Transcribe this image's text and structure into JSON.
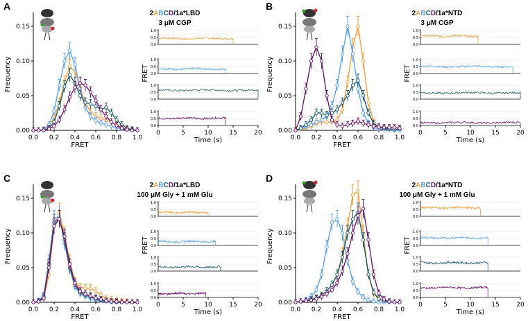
{
  "colors": {
    "A": "#f5a23c",
    "B": "#5ba3f0",
    "C": "#1e5e6e",
    "D": "#6e1a6e"
  },
  "chart_data": [
    {
      "type": "line",
      "panel": "A",
      "title_prefix": "2",
      "title_subunits": [
        "A",
        "B",
        "C",
        "D"
      ],
      "title_suffix": "/1a*LBD",
      "condition": "3 μM CGP",
      "xlabel": "FRET",
      "ylabel": "Frequency",
      "xlim": [
        0,
        1
      ],
      "ylim": [
        0,
        0.17
      ],
      "xticks": [
        "0.0",
        "0.2",
        "0.4",
        "0.6",
        "0.8",
        "1.0"
      ],
      "yticks": [
        "0.00",
        "0.05",
        "0.10",
        "0.15"
      ],
      "x": [
        0,
        0.05,
        0.1,
        0.15,
        0.2,
        0.25,
        0.3,
        0.35,
        0.4,
        0.45,
        0.5,
        0.55,
        0.6,
        0.65,
        0.7,
        0.75,
        0.8,
        0.85,
        0.9,
        0.95,
        1.0
      ],
      "series": [
        {
          "name": "A",
          "values": [
            0,
            0,
            0.001,
            0.006,
            0.018,
            0.04,
            0.07,
            0.092,
            0.085,
            0.062,
            0.04,
            0.026,
            0.02,
            0.017,
            0.015,
            0.012,
            0.008,
            0.004,
            0.002,
            0.001,
            0
          ]
        },
        {
          "name": "B",
          "values": [
            0,
            0,
            0.001,
            0.008,
            0.028,
            0.065,
            0.1,
            0.115,
            0.095,
            0.06,
            0.033,
            0.02,
            0.014,
            0.01,
            0.008,
            0.006,
            0.004,
            0.002,
            0.001,
            0,
            0
          ]
        },
        {
          "name": "C",
          "values": [
            0,
            0,
            0,
            0.003,
            0.012,
            0.035,
            0.063,
            0.08,
            0.068,
            0.05,
            0.04,
            0.038,
            0.035,
            0.03,
            0.033,
            0.025,
            0.015,
            0.008,
            0.003,
            0.001,
            0
          ]
        },
        {
          "name": "D",
          "values": [
            0,
            0,
            0,
            0.002,
            0.006,
            0.015,
            0.03,
            0.048,
            0.062,
            0.068,
            0.065,
            0.055,
            0.043,
            0.03,
            0.02,
            0.012,
            0.007,
            0.003,
            0.001,
            0,
            0
          ]
        }
      ],
      "traces_time_label": "Time (s)",
      "traces_ylabel": "FRET",
      "trace_xticks": [
        "0",
        "5",
        "10",
        "15",
        "20"
      ],
      "trace_yticks": [
        "0.0",
        "0.5",
        "1.0"
      ],
      "traces": [
        {
          "name": "A",
          "end_time": 15,
          "mean": 0.42
        },
        {
          "name": "B",
          "end_time": 13.5,
          "mean": 0.33
        },
        {
          "name": "C",
          "end_time": 20,
          "mean": 0.65
        },
        {
          "name": "D",
          "end_time": 13.5,
          "mean": 0.52
        }
      ]
    },
    {
      "type": "line",
      "panel": "B",
      "title_prefix": "2",
      "title_subunits": [
        "A",
        "B",
        "C",
        "D"
      ],
      "title_suffix": "/1a*NTD",
      "condition": "3 μM CGP",
      "xlabel": "FRET",
      "ylabel": "Frequency",
      "xlim": [
        0,
        1
      ],
      "ylim": [
        0,
        0.17
      ],
      "xticks": [
        "0.0",
        "0.2",
        "0.4",
        "0.6",
        "0.8",
        "1.0"
      ],
      "yticks": [
        "0.00",
        "0.05",
        "0.10",
        "0.15"
      ],
      "x": [
        0,
        0.05,
        0.1,
        0.15,
        0.2,
        0.25,
        0.3,
        0.35,
        0.4,
        0.45,
        0.5,
        0.55,
        0.6,
        0.65,
        0.7,
        0.75,
        0.8,
        0.85,
        0.9,
        0.95,
        1.0
      ],
      "series": [
        {
          "name": "A",
          "values": [
            0,
            0.001,
            0.003,
            0.006,
            0.01,
            0.012,
            0.012,
            0.012,
            0.015,
            0.03,
            0.07,
            0.12,
            0.15,
            0.1,
            0.04,
            0.012,
            0.004,
            0.002,
            0.001,
            0.001,
            0
          ]
        },
        {
          "name": "B",
          "values": [
            0,
            0.002,
            0.005,
            0.008,
            0.012,
            0.015,
            0.02,
            0.035,
            0.065,
            0.11,
            0.15,
            0.11,
            0.06,
            0.025,
            0.01,
            0.004,
            0.002,
            0.001,
            0.001,
            0,
            0
          ]
        },
        {
          "name": "C",
          "values": [
            0,
            0.003,
            0.008,
            0.015,
            0.025,
            0.025,
            0.022,
            0.025,
            0.03,
            0.04,
            0.05,
            0.065,
            0.072,
            0.05,
            0.025,
            0.01,
            0.005,
            0.003,
            0.002,
            0.001,
            0.002
          ]
        },
        {
          "name": "D",
          "values": [
            0,
            0.02,
            0.06,
            0.1,
            0.12,
            0.1,
            0.05,
            0.015,
            0.008,
            0.006,
            0.008,
            0.01,
            0.013,
            0.01,
            0.008,
            0.006,
            0.005,
            0.004,
            0.004,
            0.004,
            0.003
          ]
        }
      ],
      "traces_time_label": "Time (s)",
      "traces_ylabel": "FRET",
      "trace_xticks": [
        "0",
        "5",
        "10",
        "15",
        "20"
      ],
      "trace_yticks": [
        "0.0",
        "0.5",
        "1.0"
      ],
      "traces": [
        {
          "name": "A",
          "end_time": 11.5,
          "mean": 0.6
        },
        {
          "name": "B",
          "end_time": 18.5,
          "mean": 0.5
        },
        {
          "name": "C",
          "end_time": 20,
          "mean": 0.45
        },
        {
          "name": "D",
          "end_time": 20,
          "mean": 0.2
        }
      ]
    },
    {
      "type": "line",
      "panel": "C",
      "title_prefix": "2",
      "title_subunits": [
        "A",
        "B",
        "C",
        "D"
      ],
      "title_suffix": "/1a*LBD",
      "condition": "100 μM Gly + 1 mM Glu",
      "xlabel": "FRET",
      "ylabel": "Frequency",
      "xlim": [
        0,
        1
      ],
      "ylim": [
        0,
        0.17
      ],
      "xticks": [
        "0.0",
        "0.2",
        "0.4",
        "0.6",
        "0.8",
        "1.0"
      ],
      "yticks": [
        "0.00",
        "0.05",
        "0.10",
        "0.15"
      ],
      "x": [
        0,
        0.05,
        0.1,
        0.15,
        0.2,
        0.25,
        0.3,
        0.35,
        0.4,
        0.45,
        0.5,
        0.55,
        0.6,
        0.65,
        0.7,
        0.75,
        0.8,
        0.85,
        0.9,
        0.95,
        1.0
      ],
      "series": [
        {
          "name": "A",
          "values": [
            0,
            0.001,
            0.005,
            0.04,
            0.11,
            0.13,
            0.098,
            0.06,
            0.03,
            0.022,
            0.02,
            0.02,
            0.016,
            0.01,
            0.006,
            0.004,
            0.002,
            0.001,
            0.001,
            0,
            0
          ]
        },
        {
          "name": "B",
          "values": [
            0,
            0.002,
            0.01,
            0.06,
            0.12,
            0.125,
            0.085,
            0.048,
            0.022,
            0.012,
            0.008,
            0.005,
            0.003,
            0.002,
            0.001,
            0,
            0,
            0,
            0,
            0,
            0
          ]
        },
        {
          "name": "C",
          "values": [
            0,
            0.001,
            0.008,
            0.055,
            0.115,
            0.12,
            0.09,
            0.05,
            0.025,
            0.014,
            0.01,
            0.008,
            0.005,
            0.003,
            0.002,
            0.001,
            0,
            0,
            0,
            0,
            0
          ]
        },
        {
          "name": "D",
          "values": [
            0,
            0.001,
            0.006,
            0.05,
            0.11,
            0.12,
            0.095,
            0.055,
            0.028,
            0.016,
            0.012,
            0.009,
            0.006,
            0.004,
            0.002,
            0.001,
            0.001,
            0,
            0,
            0,
            0
          ]
        }
      ],
      "traces_time_label": "Time (s)",
      "traces_ylabel": "FRET",
      "trace_xticks": [
        "0",
        "5",
        "10",
        "15",
        "20"
      ],
      "trace_yticks": [
        "0.0",
        "0.5",
        "1.0"
      ],
      "traces": [
        {
          "name": "A",
          "end_time": 10,
          "mean": 0.28
        },
        {
          "name": "B",
          "end_time": 11.5,
          "mean": 0.28
        },
        {
          "name": "C",
          "end_time": 12.5,
          "mean": 0.3
        },
        {
          "name": "D",
          "end_time": 9.5,
          "mean": 0.28
        }
      ]
    },
    {
      "type": "line",
      "panel": "D",
      "title_prefix": "2",
      "title_subunits": [
        "A",
        "B",
        "C",
        "D"
      ],
      "title_suffix": "/1a*NTD",
      "condition": "100 μM Gly + 1 mM Glu",
      "xlabel": "FRET",
      "ylabel": "Frequency",
      "xlim": [
        0,
        1
      ],
      "ylim": [
        0,
        0.17
      ],
      "xticks": [
        "0.0",
        "0.2",
        "0.4",
        "0.6",
        "0.8",
        "1.0"
      ],
      "yticks": [
        "0.00",
        "0.05",
        "0.10",
        "0.15"
      ],
      "x": [
        0,
        0.05,
        0.1,
        0.15,
        0.2,
        0.25,
        0.3,
        0.35,
        0.4,
        0.45,
        0.5,
        0.55,
        0.6,
        0.65,
        0.7,
        0.75,
        0.8,
        0.85,
        0.9,
        0.95,
        1.0
      ],
      "series": [
        {
          "name": "A",
          "values": [
            0,
            0.001,
            0.002,
            0.004,
            0.006,
            0.01,
            0.016,
            0.025,
            0.04,
            0.07,
            0.11,
            0.155,
            0.16,
            0.1,
            0.04,
            0.012,
            0.004,
            0.002,
            0.001,
            0,
            0
          ]
        },
        {
          "name": "B",
          "values": [
            0,
            0.001,
            0.003,
            0.008,
            0.018,
            0.04,
            0.08,
            0.115,
            0.12,
            0.1,
            0.06,
            0.03,
            0.015,
            0.007,
            0.003,
            0.001,
            0,
            0,
            0,
            0,
            0
          ]
        },
        {
          "name": "C",
          "values": [
            0,
            0.001,
            0.002,
            0.004,
            0.006,
            0.01,
            0.016,
            0.025,
            0.04,
            0.065,
            0.1,
            0.12,
            0.13,
            0.09,
            0.04,
            0.014,
            0.005,
            0.002,
            0.001,
            0,
            0
          ]
        },
        {
          "name": "D",
          "values": [
            0,
            0.001,
            0.002,
            0.003,
            0.005,
            0.008,
            0.012,
            0.018,
            0.028,
            0.045,
            0.07,
            0.1,
            0.125,
            0.135,
            0.09,
            0.04,
            0.013,
            0.004,
            0.001,
            0,
            0
          ]
        }
      ],
      "traces_time_label": "Time (s)",
      "traces_ylabel": "FRET",
      "trace_xticks": [
        "0",
        "5",
        "10",
        "15",
        "20"
      ],
      "trace_yticks": [
        "0.0",
        "0.5",
        "1.0"
      ],
      "traces": [
        {
          "name": "A",
          "end_time": 12,
          "mean": 0.62
        },
        {
          "name": "B",
          "end_time": 13.5,
          "mean": 0.55
        },
        {
          "name": "C",
          "end_time": 13.5,
          "mean": 0.6
        },
        {
          "name": "D",
          "end_time": 13.5,
          "mean": 0.7
        }
      ]
    }
  ]
}
